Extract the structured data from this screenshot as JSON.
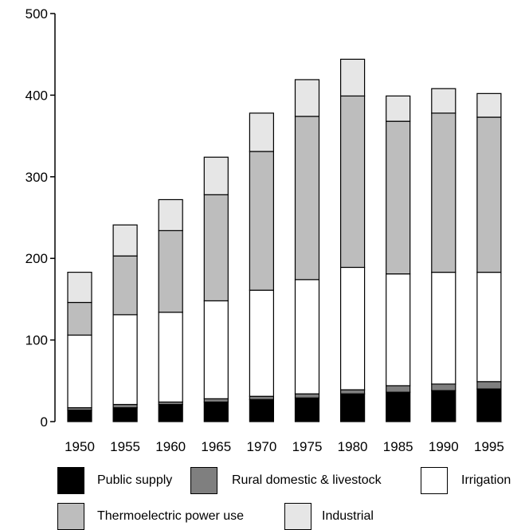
{
  "chart_data": {
    "type": "bar",
    "stacked": true,
    "categories": [
      "1950",
      "1955",
      "1960",
      "1965",
      "1970",
      "1975",
      "1980",
      "1985",
      "1990",
      "1995"
    ],
    "series": [
      {
        "name": "Public supply",
        "color": "#000000",
        "values": [
          14,
          17,
          21,
          24,
          27,
          29,
          34,
          36,
          38,
          40
        ]
      },
      {
        "name": "Rural domestic & livestock",
        "color": "#7f7f7f",
        "values": [
          3,
          4,
          3,
          4,
          4,
          5,
          5,
          8,
          8,
          9
        ]
      },
      {
        "name": "Irrigation",
        "color": "#ffffff",
        "values": [
          89,
          110,
          110,
          120,
          130,
          140,
          150,
          137,
          137,
          134
        ]
      },
      {
        "name": "Thermoelectric power use",
        "color": "#bdbdbd",
        "values": [
          40,
          72,
          100,
          130,
          170,
          200,
          210,
          187,
          195,
          190
        ]
      },
      {
        "name": "Industrial",
        "color": "#e6e6e6",
        "values": [
          37,
          38,
          38,
          46,
          47,
          45,
          45,
          31,
          30,
          29
        ]
      }
    ],
    "title": "",
    "xlabel": "",
    "ylabel": "",
    "ylim": [
      0,
      500
    ],
    "yticks": [
      "0",
      "100",
      "200",
      "300",
      "400",
      "500"
    ],
    "grid": false,
    "legend_position": "bottom"
  }
}
